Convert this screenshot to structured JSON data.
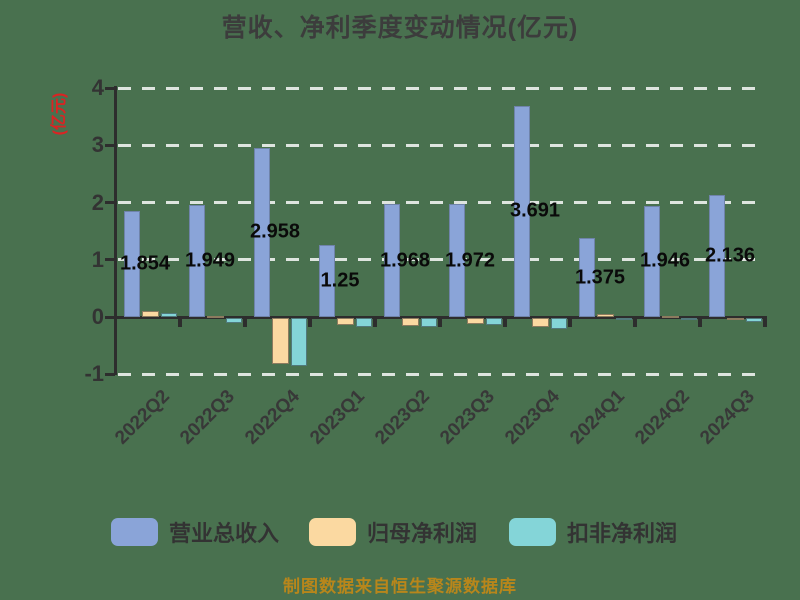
{
  "title": "营收、净利季度变动情况(亿元)",
  "y_axis": {
    "label": "(亿元)",
    "label_color": "#DB2323",
    "ticks": [
      4,
      3,
      2,
      1,
      0,
      -1
    ]
  },
  "legend": {
    "items": [
      {
        "label": "营业总收入",
        "color": "#8AA4D8"
      },
      {
        "label": "归母净利润",
        "color": "#FBD9A1"
      },
      {
        "label": "扣非净利润",
        "color": "#84D5D8"
      }
    ]
  },
  "footer": "制图数据来自恒生聚源数据库",
  "colors": {
    "background": "#49714F",
    "gridline": "#FFFFFF",
    "axis": "#2D2D2D",
    "tick_text": "#333333",
    "value_label_text": "#0A0A0A",
    "title_text": "#3C3C3C",
    "footer_text": "#B8861B"
  },
  "chart_data": {
    "type": "bar",
    "title": "营收、净利季度变动情况(亿元)",
    "ylabel": "(亿元)",
    "xlabel": "",
    "ylim": [
      -1,
      4
    ],
    "grid": "dashed-white-horizontal",
    "legend_position": "bottom",
    "categories": [
      "2022Q2",
      "2022Q3",
      "2022Q4",
      "2023Q1",
      "2023Q2",
      "2023Q3",
      "2023Q4",
      "2024Q1",
      "2024Q2",
      "2024Q3"
    ],
    "series": [
      {
        "name": "营业总收入",
        "color": "#8AA4D8",
        "values": [
          1.854,
          1.949,
          2.958,
          1.25,
          1.968,
          1.972,
          3.691,
          1.375,
          1.946,
          2.136
        ],
        "value_labels": [
          "1.854",
          "1.949",
          "2.958",
          "1.25",
          "1.968",
          "1.972",
          "3.691",
          "1.375",
          "1.946",
          "2.136"
        ]
      },
      {
        "name": "归母净利润",
        "color": "#FBD9A1",
        "values": [
          0.1,
          0.01,
          -0.8,
          -0.13,
          -0.14,
          -0.1,
          -0.16,
          0.06,
          0.01,
          -0.01
        ]
      },
      {
        "name": "扣非净利润",
        "color": "#84D5D8",
        "values": [
          0.07,
          -0.09,
          -0.83,
          -0.15,
          -0.15,
          -0.13,
          -0.2,
          -0.02,
          -0.02,
          -0.07
        ]
      }
    ]
  }
}
